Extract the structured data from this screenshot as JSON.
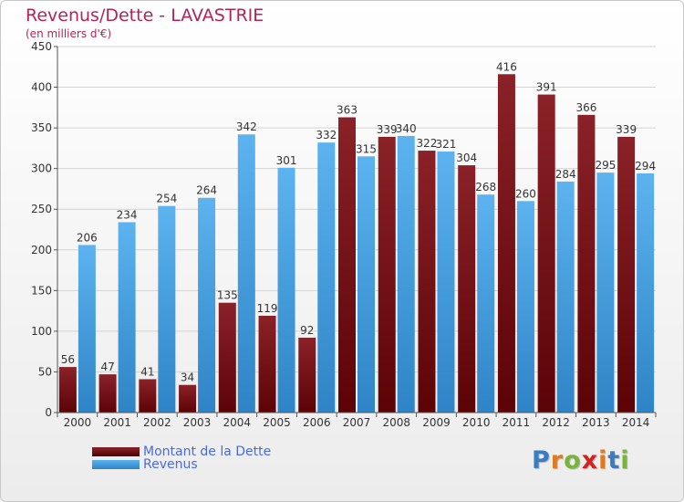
{
  "title": "Revenus/Dette - LAVASTRIE",
  "subtitle": "(en milliers d'€)",
  "logo_text": "Proxiti",
  "logo_colors": [
    "#3a7cc0",
    "#e07a1f",
    "#7ab33c",
    "#d2231f",
    "#e07a1f",
    "#3a7cc0",
    "#7ab33c"
  ],
  "legend": [
    {
      "label": "Montant de la Dette",
      "color": "#6e0f14"
    },
    {
      "label": "Revenus",
      "color": "#3f9de3"
    }
  ],
  "chart_data": {
    "type": "bar",
    "title": "Revenus/Dette - LAVASTRIE",
    "subtitle": "(en milliers d'€)",
    "categories": [
      "2000",
      "2001",
      "2002",
      "2003",
      "2004",
      "2005",
      "2006",
      "2007",
      "2008",
      "2009",
      "2010",
      "2011",
      "2012",
      "2013",
      "2014"
    ],
    "series": [
      {
        "name": "Montant de la Dette",
        "color": "#6e0f14",
        "values": [
          56,
          47,
          41,
          34,
          135,
          119,
          92,
          363,
          339,
          322,
          304,
          416,
          391,
          366,
          339
        ]
      },
      {
        "name": "Revenus",
        "color": "#3f9de3",
        "values": [
          206,
          234,
          254,
          264,
          342,
          301,
          332,
          315,
          340,
          321,
          268,
          260,
          284,
          295,
          294
        ]
      }
    ],
    "ylim": [
      0,
      450
    ],
    "yticks": [
      0,
      50,
      100,
      150,
      200,
      250,
      300,
      350,
      400,
      450
    ],
    "grid": true,
    "legend_position": "bottom-left"
  }
}
